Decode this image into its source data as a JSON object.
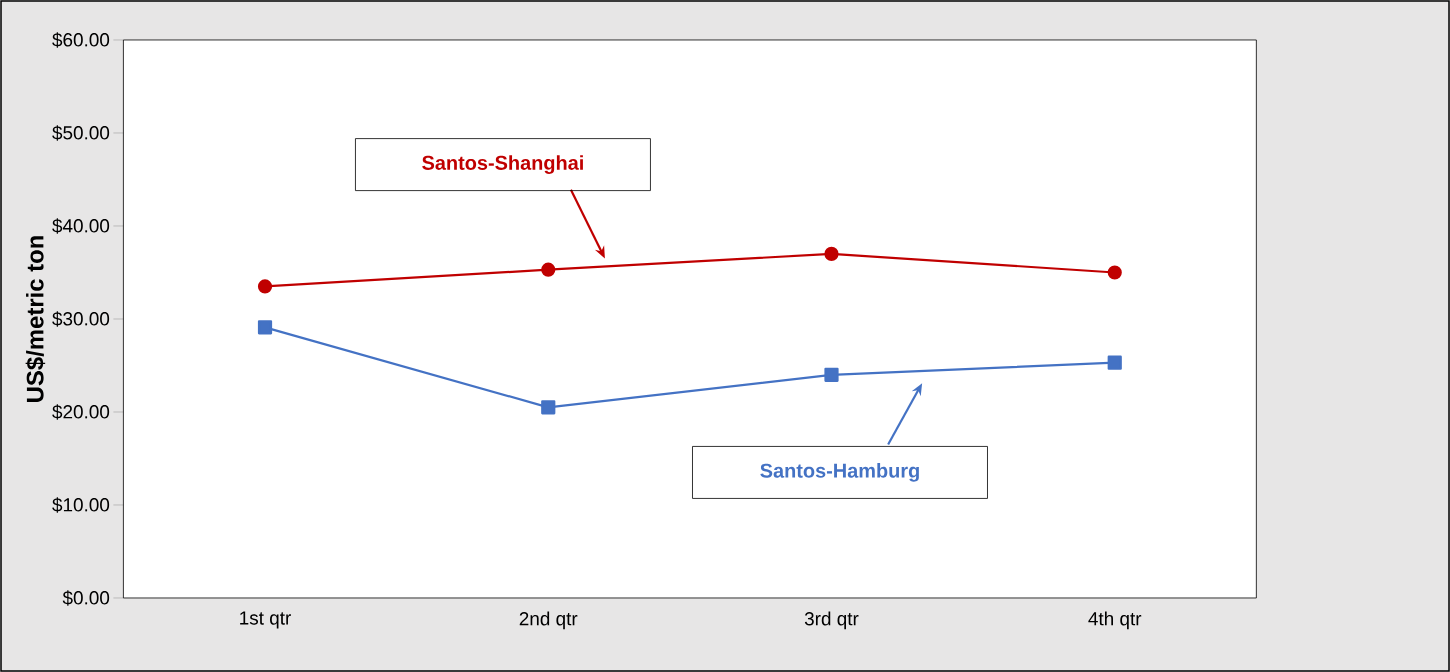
{
  "chart_data": {
    "type": "line",
    "ylabel": "US$/metric ton",
    "categories": [
      "1st qtr",
      "2nd qtr",
      "3rd qtr",
      "4th qtr"
    ],
    "series": [
      {
        "name": "Santos-Shanghai",
        "color": "#c00000",
        "marker": "circle",
        "values": [
          33.5,
          35.3,
          37.0,
          35.0
        ]
      },
      {
        "name": "Santos-Hamburg",
        "color": "#4472c4",
        "marker": "square",
        "values": [
          29.1,
          20.5,
          24.0,
          25.3
        ]
      }
    ],
    "ylim": [
      0,
      60
    ],
    "yticks": [
      {
        "value": 0,
        "label": "$0.00"
      },
      {
        "value": 10,
        "label": "$10.00"
      },
      {
        "value": 20,
        "label": "$20.00"
      },
      {
        "value": 30,
        "label": "$30.00"
      },
      {
        "value": 40,
        "label": "$40.00"
      },
      {
        "value": 50,
        "label": "$50.00"
      },
      {
        "value": 60,
        "label": "$60.00"
      }
    ],
    "grid": false,
    "line_style": "solid"
  }
}
